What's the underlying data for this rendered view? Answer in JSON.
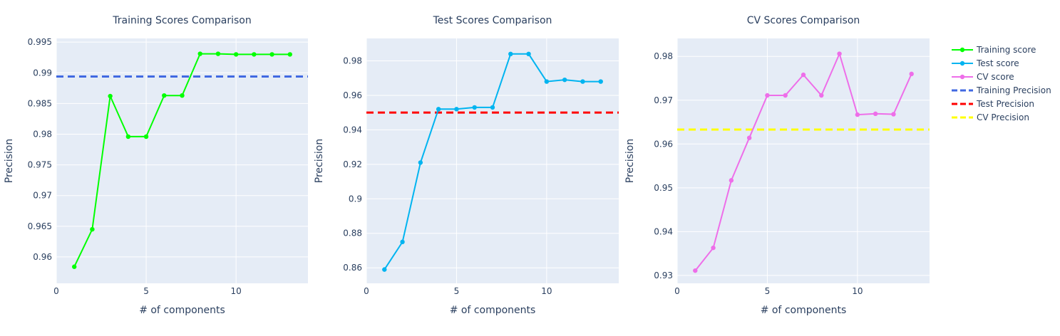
{
  "chart_data": [
    {
      "type": "line",
      "title": "Training Scores Comparison",
      "xlabel": "# of components",
      "ylabel": "Precision",
      "xlim": [
        0,
        14
      ],
      "ylim": [
        0.9557,
        0.9956
      ],
      "xticks": [
        0,
        5,
        10
      ],
      "yticks": [
        0.96,
        0.965,
        0.97,
        0.975,
        0.98,
        0.985,
        0.99,
        0.995
      ],
      "series": [
        {
          "name": "Training score",
          "color": "#00ff00",
          "x": [
            1,
            2,
            3,
            4,
            5,
            6,
            7,
            8,
            9,
            10,
            11,
            12,
            13
          ],
          "y": [
            0.9584,
            0.9645,
            0.9862,
            0.9796,
            0.9796,
            0.9863,
            0.9863,
            0.9931,
            0.9931,
            0.993,
            0.993,
            0.993,
            0.993
          ]
        }
      ],
      "hline": {
        "name": "Training Precision",
        "color": "#4169e1",
        "y": 0.9894
      }
    },
    {
      "type": "line",
      "title": "Test Scores Comparison",
      "xlabel": "# of components",
      "ylabel": "Precision",
      "xlim": [
        0,
        14
      ],
      "ylim": [
        0.851,
        0.993
      ],
      "xticks": [
        0,
        5,
        10
      ],
      "yticks": [
        0.86,
        0.88,
        0.9,
        0.92,
        0.94,
        0.96,
        0.98
      ],
      "series": [
        {
          "name": "Test score",
          "color": "#00b4f0",
          "x": [
            1,
            2,
            3,
            4,
            5,
            6,
            7,
            8,
            9,
            10,
            11,
            12,
            13
          ],
          "y": [
            0.859,
            0.875,
            0.921,
            0.952,
            0.952,
            0.953,
            0.953,
            0.984,
            0.984,
            0.968,
            0.969,
            0.968,
            0.968
          ]
        }
      ],
      "hline": {
        "name": "Test Precision",
        "color": "#ff0000",
        "y": 0.95
      }
    },
    {
      "type": "line",
      "title": "CV Scores Comparison",
      "xlabel": "# of components",
      "ylabel": "Precision",
      "xlim": [
        0,
        14
      ],
      "ylim": [
        0.9282,
        0.9841
      ],
      "xticks": [
        0,
        5,
        10
      ],
      "yticks": [
        0.93,
        0.94,
        0.95,
        0.96,
        0.97,
        0.98
      ],
      "series": [
        {
          "name": "CV score",
          "color": "#ee6ee9",
          "x": [
            1,
            2,
            3,
            4,
            5,
            6,
            7,
            8,
            9,
            10,
            11,
            12,
            13
          ],
          "y": [
            0.9311,
            0.9363,
            0.9517,
            0.9614,
            0.9711,
            0.9711,
            0.9758,
            0.9711,
            0.9806,
            0.9667,
            0.9669,
            0.9668,
            0.976
          ]
        }
      ],
      "hline": {
        "name": "CV Precision",
        "color": "#ffff00",
        "y": 0.9633
      }
    }
  ],
  "legend": {
    "placement": "right",
    "items": [
      {
        "label": "Training score",
        "color": "#00ff00",
        "style": "line-marker"
      },
      {
        "label": "Test score",
        "color": "#00b4f0",
        "style": "line-marker"
      },
      {
        "label": "CV score",
        "color": "#ee6ee9",
        "style": "line-marker"
      },
      {
        "label": "Training Precision",
        "color": "#4169e1",
        "style": "dash"
      },
      {
        "label": "Test Precision",
        "color": "#ff0000",
        "style": "dash"
      },
      {
        "label": "CV Precision",
        "color": "#ffff00",
        "style": "dash"
      }
    ]
  },
  "colors": {
    "plot_bg": "#e5ecf6",
    "grid": "#ffffff",
    "text": "#2a3f5f"
  }
}
